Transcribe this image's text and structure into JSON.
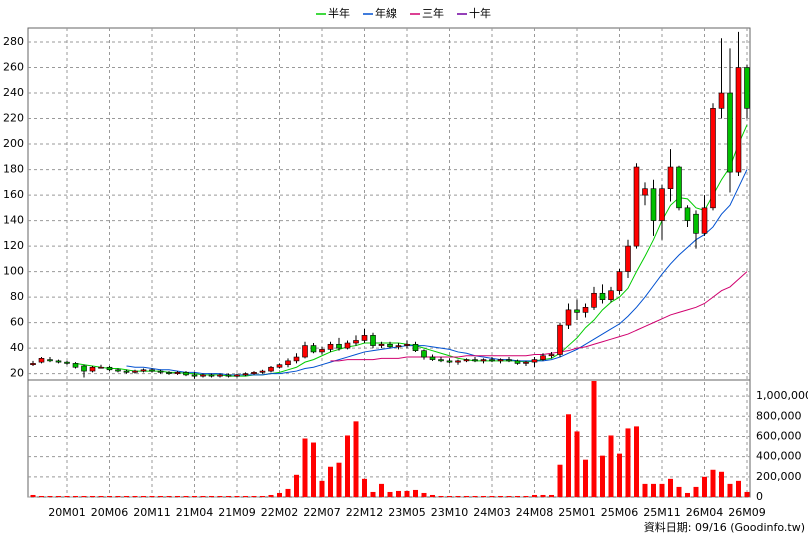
{
  "chart_data": {
    "type": "candlestick",
    "categories": [
      null,
      null,
      null,
      null,
      "20M01",
      null,
      null,
      null,
      null,
      "20M06",
      null,
      null,
      null,
      null,
      "20M11",
      null,
      null,
      null,
      null,
      "21M04",
      null,
      null,
      null,
      null,
      "21M09",
      null,
      null,
      null,
      null,
      "22M02",
      null,
      null,
      null,
      null,
      "22M07",
      null,
      null,
      null,
      null,
      "22M12",
      null,
      null,
      null,
      null,
      "23M05",
      null,
      null,
      null,
      null,
      "23M10",
      null,
      null,
      null,
      null,
      "24M03",
      null,
      null,
      null,
      null,
      "24M08",
      null,
      null,
      null,
      null,
      "25M01",
      null,
      null,
      null,
      null,
      "25M06",
      null,
      null,
      null,
      null,
      "25M11",
      null,
      null,
      null,
      null,
      "26M04",
      null,
      null,
      null,
      null,
      "26M09"
    ],
    "open": [
      27,
      29,
      31,
      30,
      29,
      28,
      26,
      22,
      25,
      25,
      23,
      22,
      21,
      22,
      23,
      22,
      21,
      20,
      21,
      19,
      18,
      19,
      18,
      19,
      18,
      19,
      20,
      21,
      22,
      25,
      27,
      30,
      33,
      42,
      37,
      39,
      43,
      40,
      44,
      46,
      50,
      42,
      43,
      41,
      42,
      43,
      38,
      33,
      31,
      30,
      29,
      30,
      31,
      30,
      31,
      30,
      31,
      30,
      28,
      29,
      31,
      34,
      35,
      58,
      70,
      68,
      72,
      83,
      78,
      85,
      100,
      120,
      160,
      165,
      140,
      165,
      182,
      150,
      145,
      130,
      150,
      228,
      240,
      178,
      260
    ],
    "high": [
      30,
      33,
      33,
      31,
      30,
      29,
      27,
      26,
      27,
      26,
      24,
      23,
      23,
      24,
      24,
      23,
      22,
      22,
      22,
      21,
      20,
      20,
      20,
      20,
      20,
      21,
      22,
      23,
      26,
      28,
      32,
      36,
      45,
      44,
      41,
      45,
      48,
      46,
      50,
      55,
      52,
      45,
      45,
      44,
      46,
      45,
      39,
      35,
      33,
      32,
      31,
      32,
      33,
      32,
      33,
      32,
      33,
      31,
      30,
      33,
      36,
      37,
      60,
      75,
      78,
      75,
      88,
      90,
      88,
      102,
      125,
      185,
      170,
      172,
      168,
      196,
      183,
      152,
      148,
      160,
      232,
      283,
      275,
      288,
      262
    ],
    "low": [
      26,
      28,
      29,
      28,
      27,
      24,
      17,
      21,
      24,
      22,
      21,
      20,
      20,
      21,
      21,
      20,
      19,
      19,
      18,
      16,
      17,
      17,
      17,
      17,
      17,
      18,
      19,
      20,
      21,
      24,
      25,
      28,
      32,
      36,
      35,
      37,
      38,
      39,
      42,
      44,
      40,
      40,
      40,
      39,
      40,
      37,
      31,
      30,
      29,
      28,
      27,
      29,
      29,
      28,
      29,
      28,
      29,
      27,
      26,
      25,
      30,
      32,
      33,
      55,
      62,
      64,
      70,
      75,
      76,
      82,
      95,
      118,
      152,
      128,
      125,
      155,
      148,
      135,
      118,
      128,
      148,
      220,
      162,
      175,
      220
    ],
    "close": [
      28,
      32,
      30,
      29,
      28,
      25,
      22,
      25,
      25,
      23,
      22,
      21,
      22,
      23,
      22,
      21,
      20,
      21,
      19,
      18,
      19,
      18,
      19,
      18,
      19,
      20,
      21,
      22,
      25,
      27,
      30,
      33,
      42,
      37,
      39,
      43,
      40,
      44,
      46,
      50,
      42,
      43,
      41,
      42,
      43,
      38,
      33,
      31,
      30,
      29,
      30,
      31,
      30,
      31,
      30,
      31,
      30,
      28,
      29,
      31,
      34,
      35,
      58,
      70,
      68,
      72,
      83,
      78,
      85,
      100,
      120,
      182,
      165,
      140,
      165,
      182,
      150,
      140,
      130,
      150,
      228,
      240,
      178,
      260,
      228
    ],
    "up_color": "#ff0000",
    "down_color": "#00c000",
    "series": [
      {
        "name": "半年",
        "color": "#00cc00",
        "values": [
          null,
          null,
          null,
          null,
          null,
          28,
          27,
          26,
          25,
          24,
          24,
          23,
          22,
          22,
          22,
          22,
          21,
          21,
          20,
          20,
          19,
          19,
          19,
          18,
          18,
          18,
          19,
          19,
          20,
          21,
          23,
          25,
          29,
          31,
          34,
          37,
          39,
          41,
          42,
          44,
          44,
          44,
          44,
          44,
          43,
          42,
          40,
          38,
          36,
          34,
          32,
          31,
          30,
          30,
          30,
          30,
          30,
          30,
          29,
          30,
          31,
          32,
          36,
          42,
          48,
          56,
          62,
          70,
          76,
          80,
          87,
          100,
          112,
          125,
          140,
          152,
          158,
          157,
          150,
          148,
          160,
          172,
          182,
          200,
          215
        ]
      },
      {
        "name": "年線",
        "color": "#0050d0",
        "values": [
          null,
          null,
          null,
          null,
          null,
          null,
          null,
          null,
          null,
          null,
          null,
          26,
          25,
          25,
          24,
          23,
          23,
          22,
          21,
          21,
          20,
          20,
          20,
          19,
          19,
          19,
          19,
          19,
          20,
          20,
          21,
          22,
          24,
          25,
          27,
          29,
          31,
          33,
          35,
          37,
          38,
          39,
          40,
          41,
          42,
          42,
          42,
          41,
          40,
          39,
          37,
          36,
          34,
          33,
          32,
          31,
          31,
          30,
          30,
          30,
          30,
          31,
          33,
          36,
          39,
          43,
          47,
          51,
          55,
          59,
          65,
          72,
          80,
          89,
          98,
          106,
          113,
          119,
          125,
          129,
          135,
          145,
          152,
          166,
          180
        ]
      },
      {
        "name": "三年",
        "color": "#d0006f",
        "values": [
          null,
          null,
          null,
          null,
          null,
          null,
          null,
          null,
          null,
          null,
          null,
          null,
          null,
          null,
          null,
          null,
          null,
          null,
          null,
          null,
          null,
          null,
          null,
          null,
          null,
          null,
          null,
          null,
          null,
          null,
          null,
          null,
          null,
          null,
          null,
          30,
          30,
          31,
          31,
          31,
          31,
          32,
          32,
          32,
          33,
          33,
          33,
          33,
          33,
          33,
          33,
          34,
          34,
          34,
          34,
          34,
          34,
          34,
          34,
          35,
          35,
          36,
          37,
          38,
          40,
          41,
          43,
          45,
          47,
          49,
          51,
          54,
          57,
          60,
          63,
          66,
          68,
          70,
          72,
          75,
          80,
          85,
          88,
          94,
          100
        ]
      },
      {
        "name": "十年",
        "color": "#7000a0"
      }
    ],
    "ylim": [
      15,
      291
    ],
    "yticks": [
      20,
      40,
      60,
      80,
      100,
      120,
      140,
      160,
      180,
      200,
      220,
      240,
      260,
      280
    ],
    "grid": true,
    "volume": {
      "type": "bar",
      "color": "#ff0000",
      "values": [
        20000,
        10000,
        10000,
        10000,
        10000,
        10000,
        10000,
        10000,
        10000,
        10000,
        10000,
        10000,
        10000,
        10000,
        10000,
        10000,
        10000,
        10000,
        10000,
        10000,
        10000,
        10000,
        10000,
        10000,
        10000,
        10000,
        10000,
        10000,
        20000,
        40000,
        80000,
        220000,
        580000,
        540000,
        160000,
        300000,
        340000,
        610000,
        750000,
        180000,
        50000,
        130000,
        50000,
        60000,
        60000,
        70000,
        40000,
        20000,
        10000,
        10000,
        10000,
        10000,
        10000,
        10000,
        10000,
        10000,
        10000,
        10000,
        10000,
        20000,
        20000,
        20000,
        320000,
        820000,
        650000,
        370000,
        1150000,
        410000,
        610000,
        430000,
        680000,
        700000,
        130000,
        130000,
        130000,
        180000,
        100000,
        40000,
        100000,
        200000,
        270000,
        250000,
        130000,
        160000,
        50000
      ],
      "ylim": [
        0,
        1160000
      ],
      "yticks": [
        0,
        {
          "value": 200000,
          "label": "200,000"
        },
        {
          "value": 400000,
          "label": "400,000"
        },
        {
          "value": 600000,
          "label": "600,000"
        },
        {
          "value": 800000,
          "label": "800,000"
        },
        {
          "value": 1000000,
          "label": "1,000,000"
        }
      ]
    },
    "source": "資料日期: 09/16 (Goodinfo.tw)"
  }
}
